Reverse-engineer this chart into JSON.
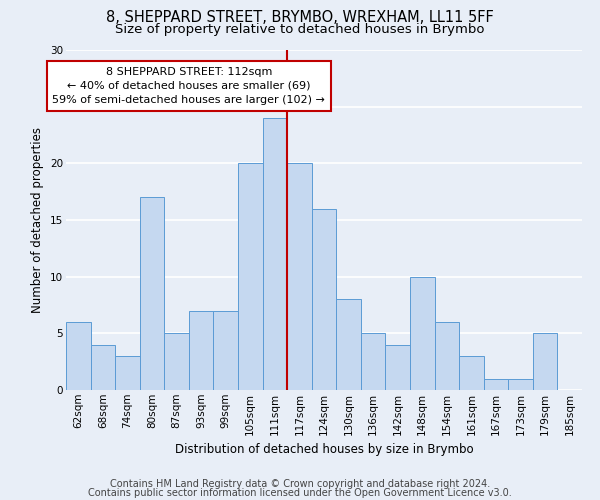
{
  "title1": "8, SHEPPARD STREET, BRYMBO, WREXHAM, LL11 5FF",
  "title2": "Size of property relative to detached houses in Brymbo",
  "xlabel": "Distribution of detached houses by size in Brymbo",
  "ylabel": "Number of detached properties",
  "categories": [
    "62sqm",
    "68sqm",
    "74sqm",
    "80sqm",
    "87sqm",
    "93sqm",
    "99sqm",
    "105sqm",
    "111sqm",
    "117sqm",
    "124sqm",
    "130sqm",
    "136sqm",
    "142sqm",
    "148sqm",
    "154sqm",
    "161sqm",
    "167sqm",
    "173sqm",
    "179sqm",
    "185sqm"
  ],
  "values": [
    6,
    4,
    3,
    17,
    5,
    7,
    7,
    20,
    24,
    20,
    16,
    8,
    5,
    4,
    10,
    6,
    3,
    1,
    1,
    5,
    0
  ],
  "bar_color": "#c5d8f0",
  "bar_edge_color": "#5b9bd5",
  "vline_x_idx": 8,
  "vline_color": "#c00000",
  "annotation_line1": "8 SHEPPARD STREET: 112sqm",
  "annotation_line2": "← 40% of detached houses are smaller (69)",
  "annotation_line3": "59% of semi-detached houses are larger (102) →",
  "annotation_box_color": "white",
  "annotation_box_edge": "#c00000",
  "ylim": [
    0,
    30
  ],
  "yticks": [
    0,
    5,
    10,
    15,
    20,
    25,
    30
  ],
  "footer1": "Contains HM Land Registry data © Crown copyright and database right 2024.",
  "footer2": "Contains public sector information licensed under the Open Government Licence v3.0.",
  "background_color": "#e8eef7",
  "grid_color": "white",
  "title1_fontsize": 10.5,
  "title2_fontsize": 9.5,
  "tick_fontsize": 7.5,
  "ylabel_fontsize": 8.5,
  "xlabel_fontsize": 8.5,
  "annotation_fontsize": 8,
  "footer_fontsize": 7
}
